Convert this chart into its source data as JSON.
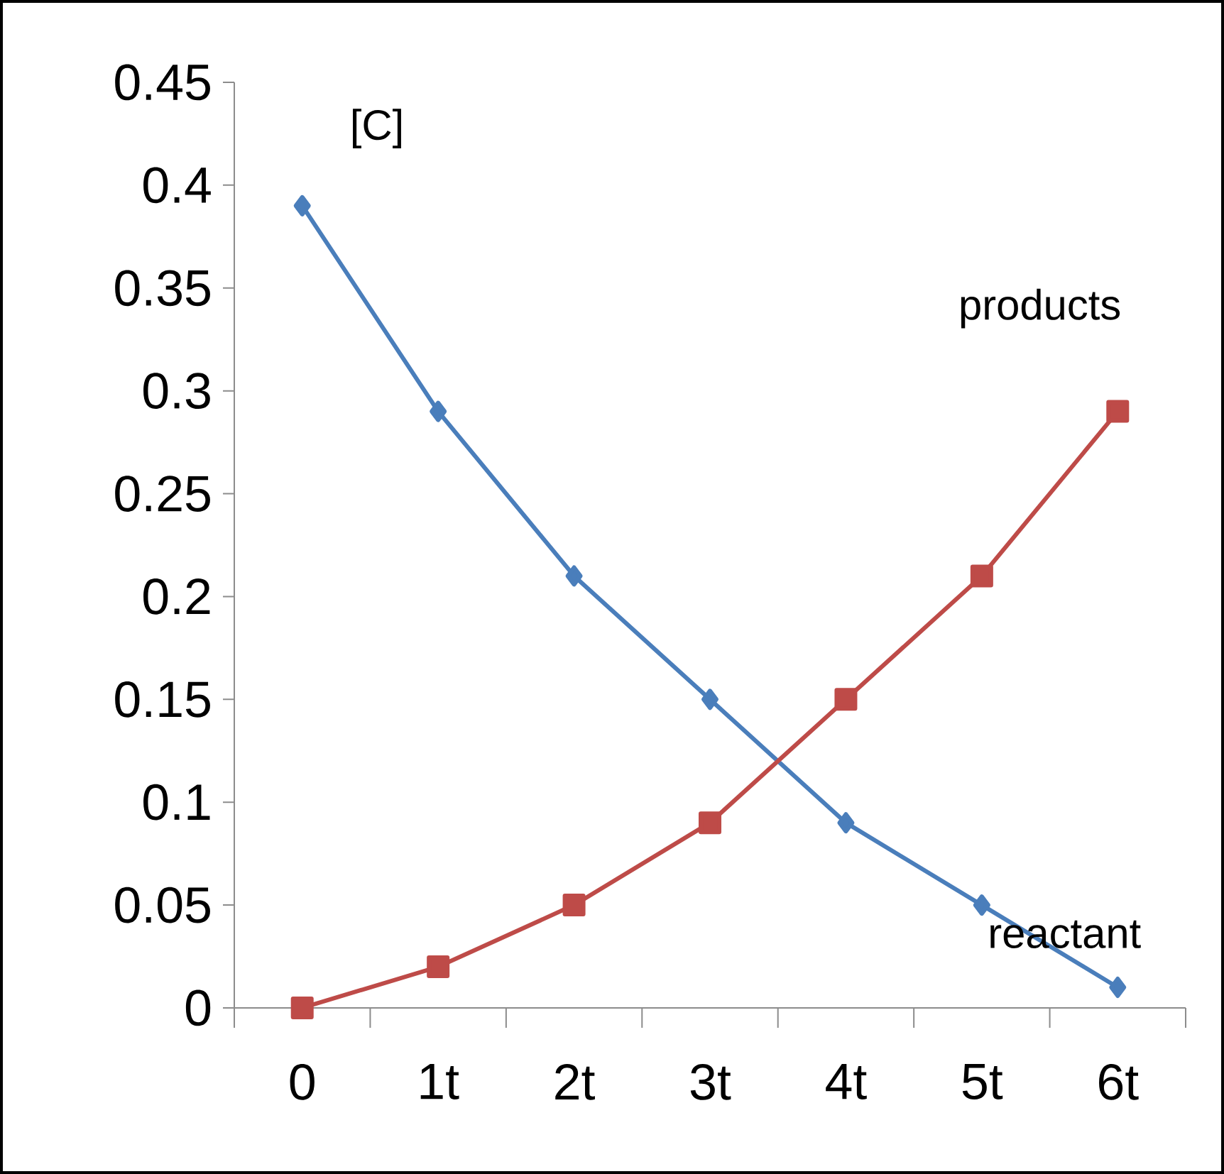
{
  "chart_data": {
    "type": "line",
    "ylabel": "[C]",
    "categories": [
      "0",
      "1t",
      "2t",
      "3t",
      "4t",
      "5t",
      "6t"
    ],
    "series": [
      {
        "name": "reactant",
        "color": "#4a7ebb",
        "marker": "diamond",
        "values": [
          0.39,
          0.29,
          0.21,
          0.15,
          0.09,
          0.05,
          0.01
        ]
      },
      {
        "name": "products",
        "color": "#be4b48",
        "marker": "square",
        "values": [
          0,
          0.02,
          0.05,
          0.09,
          0.15,
          0.21,
          0.29
        ]
      }
    ],
    "ylim": [
      0,
      0.45
    ],
    "yticks": [
      0,
      0.05,
      0.1,
      0.15,
      0.2,
      0.25,
      0.3,
      0.35,
      0.4,
      0.45
    ],
    "grid": false,
    "legend": false,
    "line_style": "solid"
  }
}
